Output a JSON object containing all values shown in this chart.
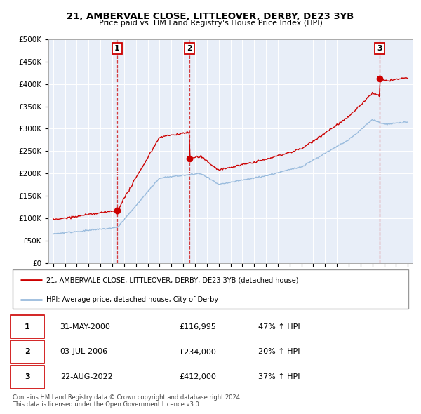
{
  "title": "21, AMBERVALE CLOSE, LITTLEOVER, DERBY, DE23 3YB",
  "subtitle": "Price paid vs. HM Land Registry's House Price Index (HPI)",
  "ylim": [
    0,
    500000
  ],
  "yticks": [
    0,
    50000,
    100000,
    150000,
    200000,
    250000,
    300000,
    350000,
    400000,
    450000,
    500000
  ],
  "sale1_time": 2000.417,
  "sale2_time": 2006.5,
  "sale3_time": 2022.625,
  "sale_prices": [
    116995,
    234000,
    412000
  ],
  "sale_labels": [
    "1",
    "2",
    "3"
  ],
  "red_line_color": "#cc0000",
  "blue_line_color": "#99bbdd",
  "dashed_vline_color": "#cc0000",
  "legend_entries": [
    "21, AMBERVALE CLOSE, LITTLEOVER, DERBY, DE23 3YB (detached house)",
    "HPI: Average price, detached house, City of Derby"
  ],
  "table_rows": [
    {
      "label": "1",
      "date": "31-MAY-2000",
      "price": "£116,995",
      "change": "47% ↑ HPI"
    },
    {
      "label": "2",
      "date": "03-JUL-2006",
      "price": "£234,000",
      "change": "20% ↑ HPI"
    },
    {
      "label": "3",
      "date": "22-AUG-2022",
      "price": "£412,000",
      "change": "37% ↑ HPI"
    }
  ],
  "footer": "Contains HM Land Registry data © Crown copyright and database right 2024.\nThis data is licensed under the Open Government Licence v3.0.",
  "plot_bg_color": "#e8eef8",
  "grid_color": "#ffffff"
}
